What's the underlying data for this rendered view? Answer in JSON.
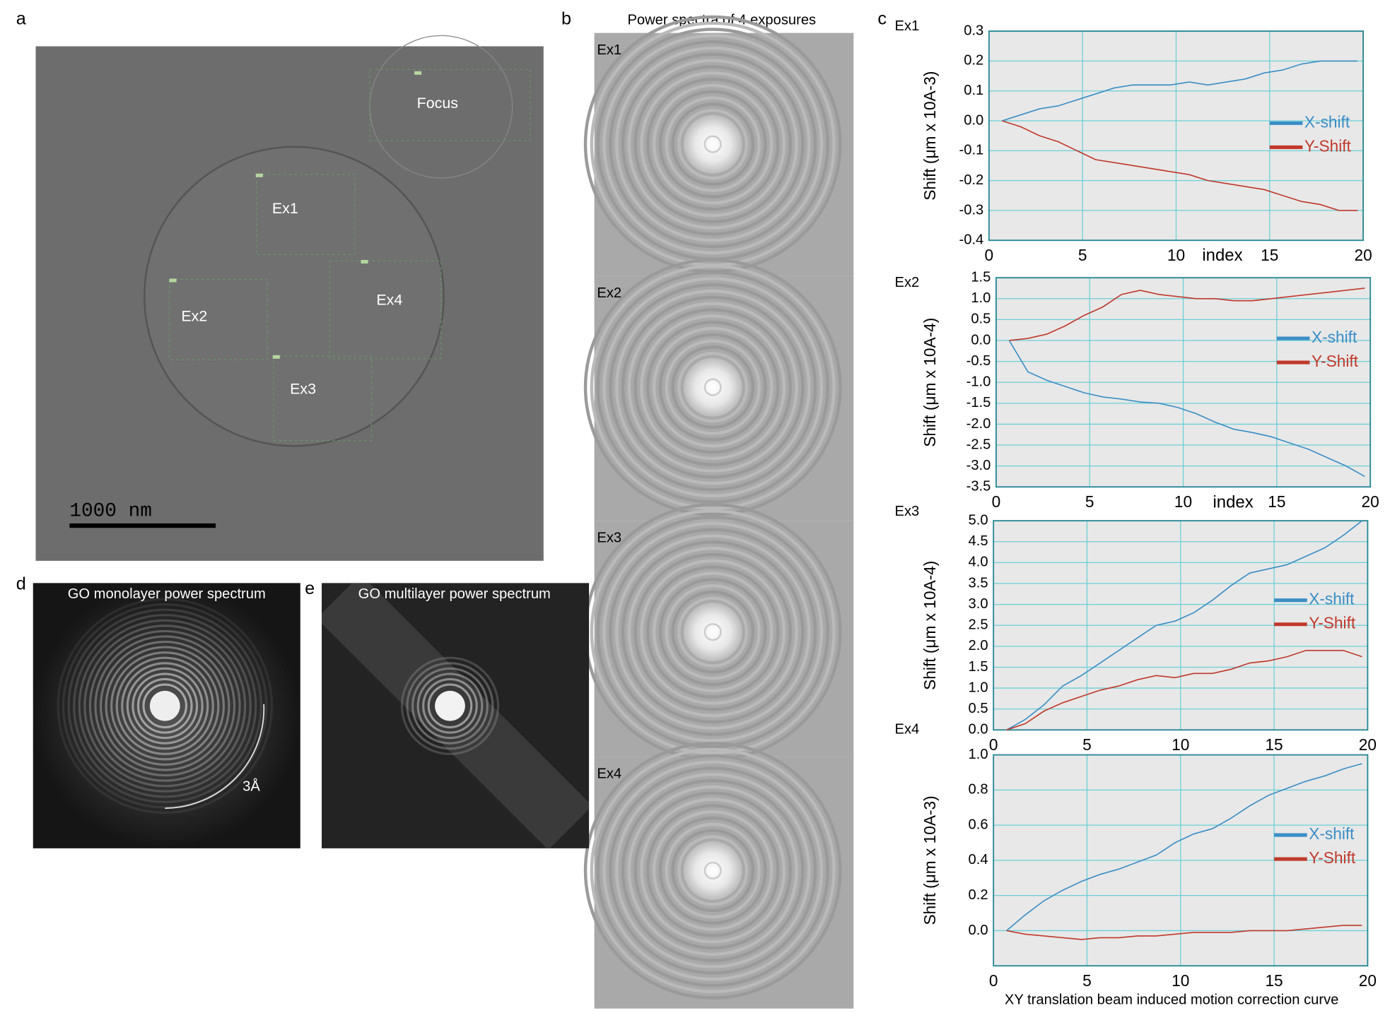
{
  "figure": {
    "panel_labels": [
      "a",
      "b",
      "c",
      "d",
      "e"
    ]
  },
  "panel_a": {
    "exposure_labels": [
      "Focus",
      "Ex1",
      "Ex2",
      "Ex3",
      "Ex4"
    ],
    "scale_bar": "1000 nm"
  },
  "panel_b": {
    "title": "Power spectra of 4 exposures",
    "tile_labels": [
      "Ex1",
      "Ex2",
      "Ex3",
      "Ex4"
    ]
  },
  "panel_d": {
    "title": "GO monolayer power spectrum",
    "annotation": "3Å"
  },
  "panel_e": {
    "title": "GO multilayer power spectrum"
  },
  "chart_data": [
    {
      "type": "line",
      "title": "Ex1",
      "y_label": "Shift (μm  x 10A-3)",
      "x_label": "index",
      "x": [
        0.7,
        1.7,
        2.7,
        3.7,
        4.7,
        5.7,
        6.7,
        7.7,
        8.7,
        9.7,
        10.7,
        11.7,
        12.7,
        13.7,
        14.7,
        15.7,
        16.7,
        17.7,
        18.7,
        19.7
      ],
      "series": [
        {
          "name": "X-shift",
          "color": "#3b8ec6",
          "values": [
            0,
            0.02,
            0.04,
            0.05,
            0.07,
            0.09,
            0.11,
            0.12,
            0.12,
            0.12,
            0.13,
            0.12,
            0.13,
            0.14,
            0.16,
            0.17,
            0.19,
            0.2,
            0.2,
            0.2
          ]
        },
        {
          "name": "Y-Shift",
          "color": "#c0392b",
          "values": [
            0,
            -0.02,
            -0.05,
            -0.07,
            -0.1,
            -0.13,
            -0.14,
            -0.15,
            -0.16,
            -0.17,
            -0.18,
            -0.2,
            -0.21,
            -0.22,
            -0.23,
            -0.25,
            -0.27,
            -0.28,
            -0.3,
            -0.3
          ]
        }
      ],
      "xlim": [
        0,
        20
      ],
      "xticks": [
        0,
        5,
        10,
        15,
        20
      ],
      "ylim": [
        -0.4,
        0.3
      ],
      "yticks": [
        -0.4,
        -0.3,
        -0.2,
        -0.1,
        {
          "value": 0,
          "label": "0.0"
        },
        0.1,
        0.2,
        0.3
      ],
      "grid": true,
      "legend": "right"
    },
    {
      "type": "line",
      "title": "Ex2",
      "y_label": "Shift (μm  x 10A-4)",
      "x_label": "index",
      "x": [
        0.7,
        1.7,
        2.7,
        3.7,
        4.7,
        5.7,
        6.7,
        7.7,
        8.7,
        9.7,
        10.7,
        11.7,
        12.7,
        13.7,
        14.7,
        15.7,
        16.7,
        17.7,
        18.7,
        19.7
      ],
      "series": [
        {
          "name": "X-shift",
          "color": "#3b8ec6",
          "values": [
            0,
            -0.75,
            -0.95,
            -1.1,
            -1.25,
            -1.35,
            -1.4,
            -1.47,
            -1.5,
            -1.6,
            -1.75,
            -1.95,
            -2.12,
            -2.2,
            -2.3,
            -2.45,
            -2.6,
            -2.8,
            -3.0,
            -3.25
          ]
        },
        {
          "name": "Y-Shift",
          "color": "#c0392b",
          "values": [
            0,
            0.05,
            0.15,
            0.35,
            0.6,
            0.8,
            1.1,
            1.2,
            1.1,
            1.05,
            1.0,
            1.0,
            0.95,
            0.95,
            1.0,
            1.05,
            1.1,
            1.15,
            1.2,
            1.25
          ]
        }
      ],
      "xlim": [
        0,
        20
      ],
      "xticks": [
        0,
        5,
        10,
        15,
        20
      ],
      "ylim": [
        -3.5,
        1.5
      ],
      "yticks": [
        -3.5,
        {
          "value": -3,
          "label": "-3.0"
        },
        -2.5,
        {
          "value": -2,
          "label": "-2.0"
        },
        -1.5,
        {
          "value": -1,
          "label": "-1.0"
        },
        -0.5,
        {
          "value": 0,
          "label": "0.0"
        },
        0.5,
        {
          "value": 1,
          "label": "1.0"
        },
        1.5
      ],
      "grid": true,
      "legend": "right"
    },
    {
      "type": "line",
      "title": "Ex3",
      "y_label": "Shift (μm  x 10A-4)",
      "x": [
        0.7,
        1.7,
        2.7,
        3.7,
        4.7,
        5.7,
        6.7,
        7.7,
        8.7,
        9.7,
        10.7,
        11.7,
        12.7,
        13.7,
        14.7,
        15.7,
        16.7,
        17.7,
        18.7,
        19.7
      ],
      "series": [
        {
          "name": "X-shift",
          "color": "#3b8ec6",
          "values": [
            0,
            0.25,
            0.6,
            1.05,
            1.3,
            1.6,
            1.9,
            2.2,
            2.5,
            2.6,
            2.8,
            3.1,
            3.45,
            3.75,
            3.85,
            3.95,
            4.15,
            4.35,
            4.65,
            5.0
          ]
        },
        {
          "name": "Y-Shift",
          "color": "#c0392b",
          "values": [
            0,
            0.15,
            0.45,
            0.65,
            0.8,
            0.95,
            1.05,
            1.2,
            1.3,
            1.25,
            1.35,
            1.35,
            1.45,
            1.6,
            1.65,
            1.75,
            1.9,
            1.9,
            1.9,
            1.75
          ]
        }
      ],
      "xlim": [
        0,
        20
      ],
      "xticks": [
        0,
        5,
        10,
        15,
        20
      ],
      "ylim": [
        0,
        5
      ],
      "yticks": [
        {
          "value": 0,
          "label": "0.0"
        },
        0.5,
        {
          "value": 1,
          "label": "1.0"
        },
        1.5,
        {
          "value": 2,
          "label": "2.0"
        },
        2.5,
        {
          "value": 3,
          "label": "3.0"
        },
        3.5,
        {
          "value": 4,
          "label": "4.0"
        },
        4.5,
        {
          "value": 5,
          "label": "5.0"
        }
      ],
      "grid": true,
      "legend": "right"
    },
    {
      "type": "line",
      "title": "Ex4",
      "y_label": "Shift (μm  x 10A-3)",
      "x_label": "XY translation beam induced motion correction curve",
      "x": [
        0.7,
        1.7,
        2.7,
        3.7,
        4.7,
        5.7,
        6.7,
        7.7,
        8.7,
        9.7,
        10.7,
        11.7,
        12.7,
        13.7,
        14.7,
        15.7,
        16.7,
        17.7,
        18.7,
        19.7
      ],
      "series": [
        {
          "name": "X-shift",
          "color": "#3b8ec6",
          "values": [
            0,
            0.09,
            0.17,
            0.23,
            0.28,
            0.32,
            0.35,
            0.39,
            0.43,
            0.5,
            0.55,
            0.58,
            0.64,
            0.71,
            0.77,
            0.81,
            0.85,
            0.88,
            0.92,
            0.95
          ]
        },
        {
          "name": "Y-Shift",
          "color": "#c0392b",
          "values": [
            0,
            -0.02,
            -0.03,
            -0.04,
            -0.05,
            -0.04,
            -0.04,
            -0.03,
            -0.03,
            -0.02,
            -0.01,
            -0.01,
            -0.01,
            0,
            0,
            0,
            0.01,
            0.02,
            0.03,
            0.03
          ]
        }
      ],
      "xlim": [
        0,
        20
      ],
      "xticks": [
        0,
        5,
        10,
        15,
        20
      ],
      "ylim": [
        -0.2,
        1.0
      ],
      "yticks": [
        {
          "value": 0,
          "label": "0.0"
        },
        0.2,
        0.4,
        0.6,
        0.8,
        {
          "value": 1,
          "label": "1.0"
        }
      ],
      "grid": true,
      "legend": "right"
    }
  ]
}
